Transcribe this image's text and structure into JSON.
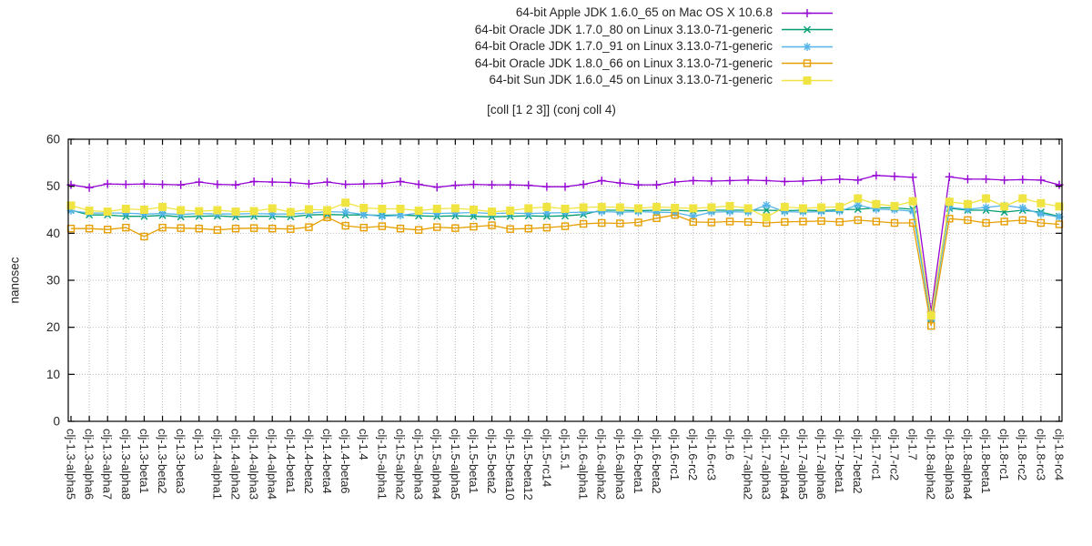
{
  "chart_data": {
    "type": "line",
    "title": "[coll [1 2 3]] (conj coll 4)",
    "xlabel": "",
    "ylabel": "nanosec",
    "ylim": [
      0,
      60
    ],
    "yticks": [
      0,
      10,
      20,
      30,
      40,
      50,
      60
    ],
    "grid": true,
    "legend_position": "top-center",
    "categories": [
      "clj-1.3-alpha5",
      "clj-1.3-alpha6",
      "clj-1.3-alpha7",
      "clj-1.3-alpha8",
      "clj-1.3-beta1",
      "clj-1.3-beta2",
      "clj-1.3-beta3",
      "clj-1.3",
      "clj-1.4-alpha1",
      "clj-1.4-alpha2",
      "clj-1.4-alpha3",
      "clj-1.4-alpha4",
      "clj-1.4-beta1",
      "clj-1.4-beta2",
      "clj-1.4-beta4",
      "clj-1.4-beta6",
      "clj-1.4",
      "clj-1.5-alpha1",
      "clj-1.5-alpha2",
      "clj-1.5-alpha3",
      "clj-1.5-alpha4",
      "clj-1.5-alpha5",
      "clj-1.5-beta1",
      "clj-1.5-beta2",
      "clj-1.5-beta10",
      "clj-1.5-beta12",
      "clj-1.5-rc14",
      "clj-1.5.1",
      "clj-1.6-alpha1",
      "clj-1.6-alpha2",
      "clj-1.6-alpha3",
      "clj-1.6-beta1",
      "clj-1.6-beta2",
      "clj-1.6-rc1",
      "clj-1.6-rc2",
      "clj-1.6-rc3",
      "clj-1.6",
      "clj-1.7-alpha2",
      "clj-1.7-alpha3",
      "clj-1.7-alpha4",
      "clj-1.7-alpha5",
      "clj-1.7-alpha6",
      "clj-1.7-beta1",
      "clj-1.7-beta2",
      "clj-1.7-rc1",
      "clj-1.7-rc2",
      "clj-1.7",
      "clj-1.8-alpha2",
      "clj-1.8-alpha3",
      "clj-1.8-alpha4",
      "clj-1.8-beta1",
      "clj-1.8-rc1",
      "clj-1.8-rc2",
      "clj-1.8-rc3",
      "clj-1.8-rc4"
    ],
    "series": [
      {
        "id": "apple-jdk-1-6-0-65",
        "name": "64-bit Apple JDK 1.6.0_65 on Mac OS X 10.6.8",
        "color": "#9400d3",
        "marker": "plus",
        "values": [
          50.3,
          49.7,
          50.5,
          50.4,
          50.5,
          50.4,
          50.3,
          50.9,
          50.4,
          50.3,
          51.0,
          50.9,
          50.8,
          50.5,
          50.9,
          50.4,
          50.5,
          50.6,
          51.0,
          50.4,
          49.8,
          50.2,
          50.4,
          50.3,
          50.3,
          50.2,
          49.9,
          49.9,
          50.4,
          51.2,
          50.7,
          50.3,
          50.3,
          50.9,
          51.2,
          51.1,
          51.2,
          51.3,
          51.2,
          51.0,
          51.1,
          51.3,
          51.5,
          51.3,
          52.3,
          52.1,
          51.9,
          23.3,
          52.0,
          51.5,
          51.5,
          51.3,
          51.4,
          51.3,
          50.3
        ]
      },
      {
        "id": "oracle-jdk-1-7-0-80",
        "name": "64-bit Oracle JDK 1.7.0_80 on Linux 3.13.0-71-generic",
        "color": "#009e73",
        "marker": "cross",
        "values": [
          44.9,
          43.9,
          43.9,
          43.6,
          43.6,
          43.8,
          43.5,
          43.6,
          43.7,
          43.5,
          43.6,
          43.6,
          43.5,
          43.9,
          44.0,
          43.9,
          43.9,
          43.8,
          43.9,
          43.7,
          43.6,
          43.7,
          43.6,
          43.5,
          43.6,
          43.7,
          43.6,
          43.7,
          44.0,
          44.9,
          44.9,
          44.8,
          44.9,
          44.9,
          44.7,
          44.9,
          44.9,
          44.9,
          44.9,
          44.8,
          44.9,
          44.8,
          45.0,
          45.1,
          45.4,
          45.4,
          45.1,
          21.8,
          45.3,
          44.9,
          44.9,
          44.5,
          44.9,
          44.5,
          43.6
        ]
      },
      {
        "id": "oracle-jdk-1-7-0-91",
        "name": "64-bit Oracle JDK 1.7.0_91 on Linux 3.13.0-71-generic",
        "color": "#56b4e9",
        "marker": "asterisk",
        "values": [
          44.8,
          44.3,
          44.3,
          44.3,
          44.1,
          44.2,
          44.0,
          44.2,
          44.1,
          44.1,
          44.2,
          44.1,
          44.1,
          44.3,
          44.6,
          44.5,
          44.0,
          43.6,
          43.8,
          44.3,
          44.2,
          44.3,
          44.4,
          44.2,
          44.3,
          44.2,
          44.3,
          44.4,
          44.5,
          44.6,
          44.5,
          44.6,
          44.5,
          44.4,
          43.6,
          44.5,
          44.6,
          44.5,
          46.0,
          44.6,
          44.5,
          44.6,
          44.7,
          46.0,
          45.1,
          45.0,
          44.7,
          21.5,
          45.5,
          45.1,
          45.5,
          45.9,
          45.4,
          44.1,
          43.5
        ]
      },
      {
        "id": "oracle-jdk-1-8-0-66",
        "name": "64-bit Oracle JDK 1.8.0_66 on Linux 3.13.0-71-generic",
        "color": "#e69f00",
        "marker": "square-open",
        "values": [
          41.0,
          41.0,
          40.8,
          41.2,
          39.3,
          41.2,
          41.1,
          41.0,
          40.7,
          41.0,
          41.1,
          41.0,
          40.9,
          41.3,
          43.4,
          41.6,
          41.2,
          41.5,
          41.0,
          40.7,
          41.3,
          41.1,
          41.4,
          41.7,
          40.9,
          41.0,
          41.2,
          41.5,
          42.0,
          42.2,
          42.1,
          42.3,
          43.2,
          43.9,
          42.4,
          42.3,
          42.5,
          42.4,
          42.2,
          42.4,
          42.5,
          42.6,
          42.4,
          42.8,
          42.5,
          42.2,
          42.2,
          20.3,
          43.1,
          42.8,
          42.2,
          42.5,
          42.8,
          42.2,
          41.9
        ]
      },
      {
        "id": "sun-jdk-1-6-0-45",
        "name": "64-bit Sun JDK 1.6.0_45 on Linux 3.13.0-71-generic",
        "color": "#f0e442",
        "marker": "square-filled",
        "values": [
          45.9,
          44.8,
          44.6,
          45.2,
          45.0,
          45.6,
          44.9,
          44.7,
          44.9,
          44.6,
          44.7,
          45.3,
          44.5,
          45.1,
          44.9,
          46.5,
          45.4,
          45.2,
          45.2,
          44.8,
          45.2,
          45.3,
          45.0,
          44.6,
          44.8,
          45.3,
          45.6,
          45.2,
          45.5,
          45.6,
          45.5,
          45.3,
          45.6,
          45.4,
          45.3,
          45.5,
          45.8,
          45.3,
          43.4,
          45.6,
          45.3,
          45.5,
          45.6,
          47.4,
          46.2,
          45.8,
          46.8,
          22.5,
          46.7,
          46.2,
          47.4,
          45.7,
          47.4,
          46.4,
          45.7
        ]
      }
    ]
  }
}
